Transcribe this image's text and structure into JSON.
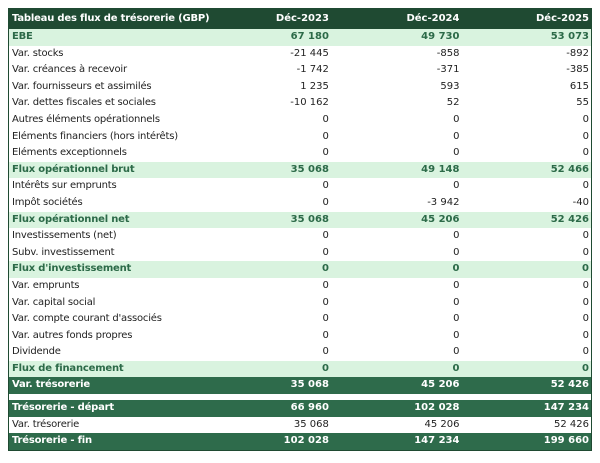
{
  "table": {
    "header": {
      "label": "Tableau des flux de trésorerie (GBP)",
      "cols": [
        "Déc-2023",
        "Déc-2024",
        "Déc-2025"
      ]
    },
    "rows": [
      {
        "label": "EBE",
        "values": [
          "67 180",
          "49 730",
          "53 073"
        ],
        "style": "sub"
      },
      {
        "label": "Var. stocks",
        "values": [
          "-21 445",
          "-858",
          "-892"
        ],
        "style": "normal"
      },
      {
        "label": "Var. créances à recevoir",
        "values": [
          "-1 742",
          "-371",
          "-385"
        ],
        "style": "normal"
      },
      {
        "label": "Var. fournisseurs et assimilés",
        "values": [
          "1 235",
          "593",
          "615"
        ],
        "style": "normal"
      },
      {
        "label": "Var. dettes fiscales et sociales",
        "values": [
          "-10 162",
          "52",
          "55"
        ],
        "style": "normal"
      },
      {
        "label": "Autres éléments opérationnels",
        "values": [
          "0",
          "0",
          "0"
        ],
        "style": "normal"
      },
      {
        "label": "Eléments financiers (hors intérêts)",
        "values": [
          "0",
          "0",
          "0"
        ],
        "style": "normal"
      },
      {
        "label": "Eléments exceptionnels",
        "values": [
          "0",
          "0",
          "0"
        ],
        "style": "normal"
      },
      {
        "label": "Flux opérationnel brut",
        "values": [
          "35 068",
          "49 148",
          "52 466"
        ],
        "style": "sub"
      },
      {
        "label": "Intérêts sur emprunts",
        "values": [
          "0",
          "0",
          "0"
        ],
        "style": "normal"
      },
      {
        "label": "Impôt sociétés",
        "values": [
          "0",
          "-3 942",
          "-40"
        ],
        "style": "normal"
      },
      {
        "label": "Flux opérationnel net",
        "values": [
          "35 068",
          "45 206",
          "52 426"
        ],
        "style": "sub"
      },
      {
        "label": "Investissements (net)",
        "values": [
          "0",
          "0",
          "0"
        ],
        "style": "normal"
      },
      {
        "label": "Subv. investissement",
        "values": [
          "0",
          "0",
          "0"
        ],
        "style": "normal"
      },
      {
        "label": "Flux d'investissement",
        "values": [
          "0",
          "0",
          "0"
        ],
        "style": "sub"
      },
      {
        "label": "Var. emprunts",
        "values": [
          "0",
          "0",
          "0"
        ],
        "style": "normal"
      },
      {
        "label": "Var. capital social",
        "values": [
          "0",
          "0",
          "0"
        ],
        "style": "normal"
      },
      {
        "label": "Var. compte courant d'associés",
        "values": [
          "0",
          "0",
          "0"
        ],
        "style": "normal"
      },
      {
        "label": "Var. autres fonds propres",
        "values": [
          "0",
          "0",
          "0"
        ],
        "style": "normal"
      },
      {
        "label": "Dividende",
        "values": [
          "0",
          "0",
          "0"
        ],
        "style": "normal"
      },
      {
        "label": "Flux de financement",
        "values": [
          "0",
          "0",
          "0"
        ],
        "style": "sub"
      },
      {
        "label": "Var. trésorerie",
        "values": [
          "35 068",
          "45 206",
          "52 426"
        ],
        "style": "dark"
      }
    ],
    "summary": [
      {
        "label": "Trésorerie - départ",
        "values": [
          "66 960",
          "102 028",
          "147 234"
        ],
        "style": "dark"
      },
      {
        "label": "Var. trésorerie",
        "values": [
          "35 068",
          "45 206",
          "52 426"
        ],
        "style": "normal"
      },
      {
        "label": "Trésorerie - fin",
        "values": [
          "102 028",
          "147 234",
          "199 660"
        ],
        "style": "dark"
      }
    ]
  }
}
